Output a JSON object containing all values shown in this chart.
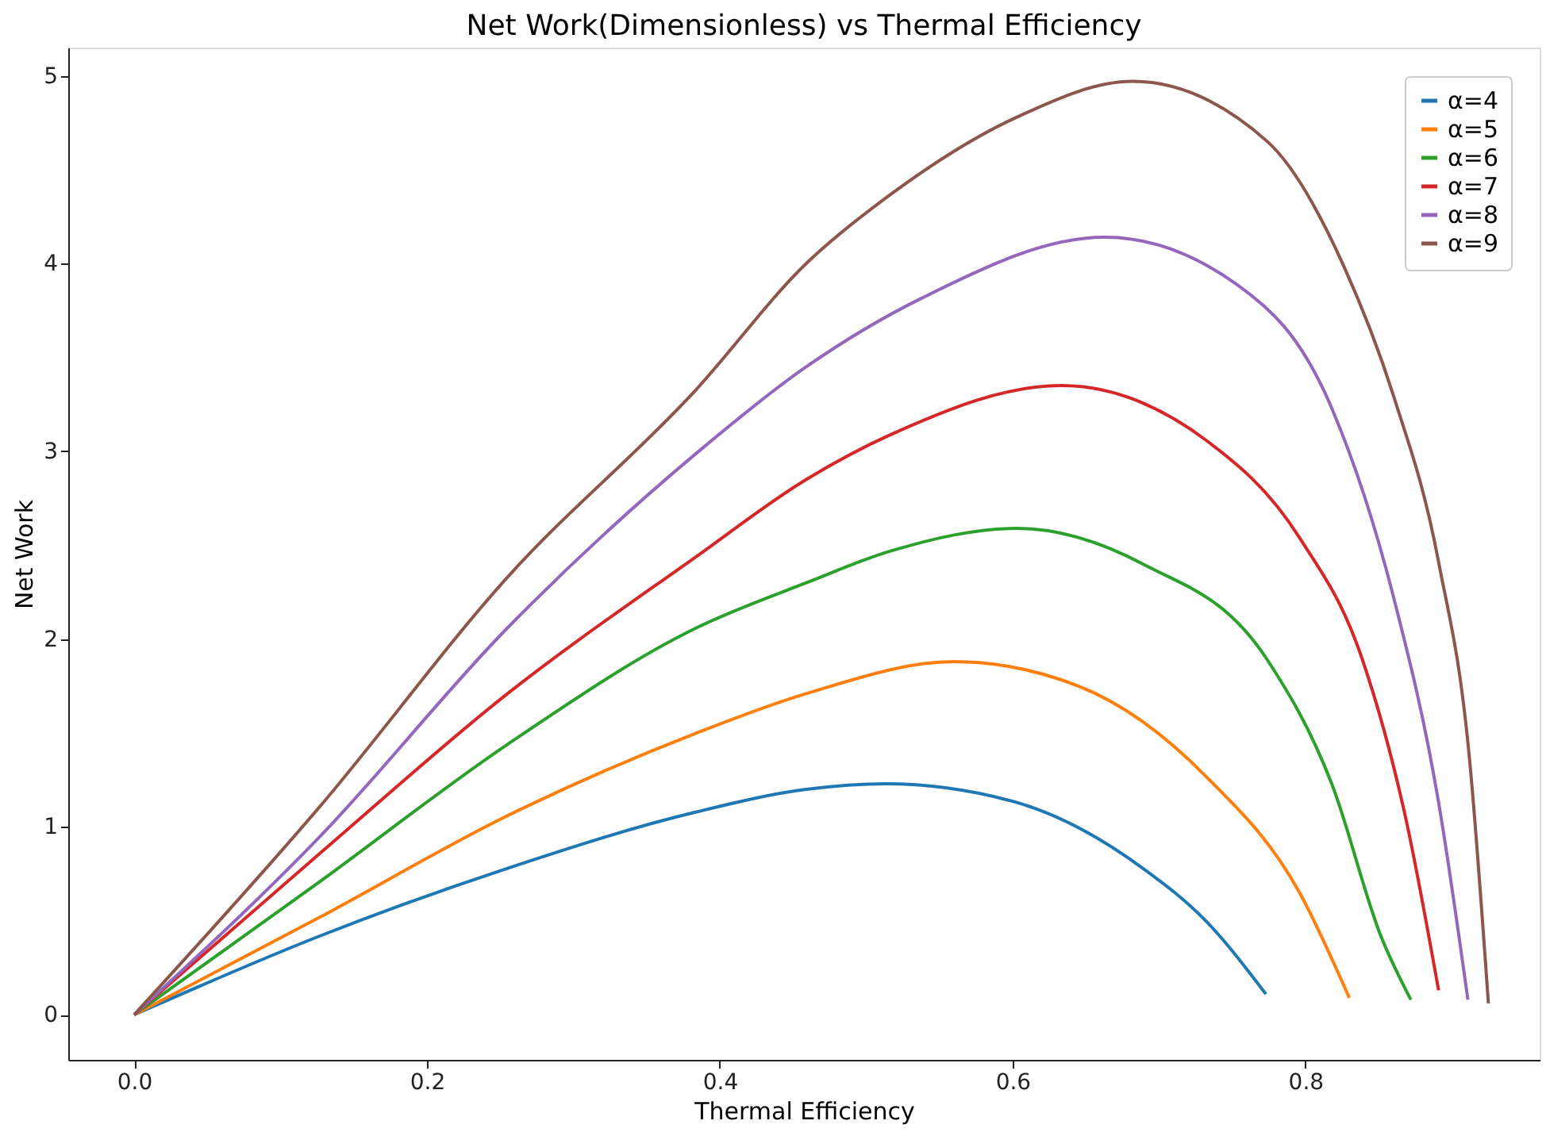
{
  "chart_data": {
    "type": "line",
    "title": "Net Work(Dimensionless) vs Thermal Efficiency",
    "xlabel": "Thermal Efficiency",
    "ylabel": "Net Work",
    "xlim": [
      -0.045,
      0.96
    ],
    "ylim": [
      -0.24,
      5.15
    ],
    "xticks": [
      {
        "value": 0,
        "label": "0.0"
      },
      0.2,
      0.4,
      0.6,
      0.8
    ],
    "yticks": [
      0,
      1,
      2,
      3,
      4,
      5
    ],
    "grid": false,
    "legend": "top right",
    "marker": "none",
    "line_style": "solid",
    "series": [
      {
        "name": "α=4",
        "color": "#1f77b4",
        "x": [
          0,
          0.127,
          0.255,
          0.384,
          0.459,
          0.513,
          0.603,
          0.689,
          0.732,
          0.773
        ],
        "values": [
          0,
          0.42,
          0.78,
          1.08,
          1.2,
          1.23,
          1.13,
          0.78,
          0.5,
          0.11
        ]
      },
      {
        "name": "α=5",
        "color": "#ff7f0e",
        "x": [
          0,
          0.127,
          0.255,
          0.384,
          0.459,
          0.56,
          0.645,
          0.732,
          0.796,
          0.83
        ],
        "values": [
          0,
          0.52,
          1.06,
          1.5,
          1.71,
          1.88,
          1.75,
          1.27,
          0.65,
          0.09
        ]
      },
      {
        "name": "α=6",
        "color": "#2ca02c",
        "x": [
          0,
          0.127,
          0.255,
          0.384,
          0.459,
          0.517,
          0.603,
          0.689,
          0.774,
          0.818,
          0.852,
          0.872
        ],
        "values": [
          0,
          0.71,
          1.44,
          2.06,
          2.3,
          2.47,
          2.59,
          2.4,
          1.89,
          1.23,
          0.41,
          0.08
        ]
      },
      {
        "name": "α=7",
        "color": "#d62728",
        "x": [
          0,
          0.127,
          0.255,
          0.384,
          0.459,
          0.517,
          0.633,
          0.732,
          0.796,
          0.839,
          0.869,
          0.891
        ],
        "values": [
          0,
          0.86,
          1.71,
          2.44,
          2.85,
          3.09,
          3.35,
          3.06,
          2.54,
          1.89,
          1.03,
          0.13
        ]
      },
      {
        "name": "α=8",
        "color": "#9467bd",
        "x": [
          0,
          0.127,
          0.255,
          0.384,
          0.459,
          0.539,
          0.663,
          0.753,
          0.818,
          0.86,
          0.891,
          0.911
        ],
        "values": [
          0,
          0.95,
          2.06,
          2.99,
          3.45,
          3.82,
          4.14,
          3.89,
          3.23,
          2.23,
          1.13,
          0.08
        ]
      },
      {
        "name": "α=9",
        "color": "#8c564b",
        "x": [
          0,
          0.127,
          0.255,
          0.384,
          0.459,
          0.517,
          0.603,
          0.682,
          0.774,
          0.826,
          0.86,
          0.891,
          0.912,
          0.925
        ],
        "values": [
          0,
          1.11,
          2.33,
          3.33,
          4.0,
          4.37,
          4.78,
          4.97,
          4.65,
          3.99,
          3.3,
          2.41,
          1.37,
          0.06
        ]
      }
    ]
  }
}
